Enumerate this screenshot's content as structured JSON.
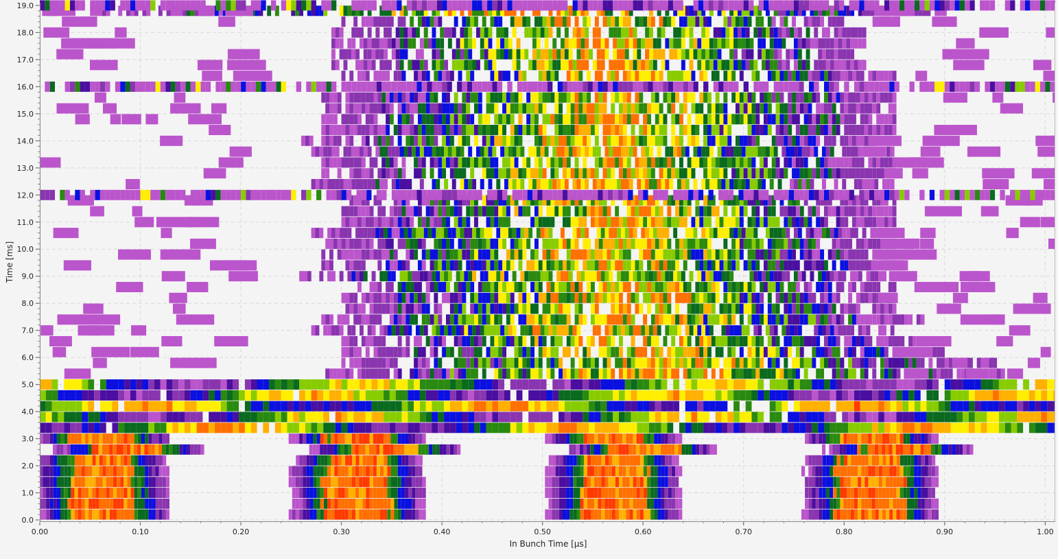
{
  "chart_data": {
    "type": "heatmap",
    "title": "",
    "xlabel": "In Bunch Time [µs]",
    "ylabel": "Time [ms]",
    "xlim": [
      0.0,
      1.01
    ],
    "ylim": [
      -0.05,
      19.1
    ],
    "x_ticks": [
      "0.00",
      "0.10",
      "0.20",
      "0.30",
      "0.40",
      "0.50",
      "0.60",
      "0.70",
      "0.80",
      "0.90",
      "1.00"
    ],
    "y_ticks": [
      "0.0",
      "1.0",
      "2.0",
      "3.0",
      "4.0",
      "5.0",
      "6.0",
      "7.0",
      "8.0",
      "9.0",
      "10.0",
      "11.0",
      "12.0",
      "13.0",
      "14.0",
      "15.0",
      "16.0",
      "17.0",
      "18.0",
      "19.0"
    ],
    "grid": true,
    "colormap": [
      "#bb55cc",
      "#8a35b0",
      "#4a0fa0",
      "#0a10e0",
      "#0a6a20",
      "#2a8a10",
      "#88cc00",
      "#ffee00",
      "#ffb000",
      "#ff7000",
      "#ff3a00"
    ],
    "background_color": "#f4f4f4",
    "row_height_ms": 0.38,
    "bunch_centers_us": [
      0.06,
      0.315,
      0.57,
      0.825
    ],
    "rows": [
      {
        "t": 0.2,
        "regime": "bunched",
        "center_shift": 0.0,
        "width": 0.09
      },
      {
        "t": 0.6,
        "regime": "bunched",
        "center_shift": 0.0,
        "width": 0.09
      },
      {
        "t": 1.0,
        "regime": "bunched",
        "center_shift": 0.0,
        "width": 0.09
      },
      {
        "t": 1.4,
        "regime": "bunched",
        "center_shift": 0.0,
        "width": 0.09
      },
      {
        "t": 1.8,
        "regime": "bunched",
        "center_shift": 0.0,
        "width": 0.09
      },
      {
        "t": 2.2,
        "regime": "bunched",
        "center_shift": 0.0,
        "width": 0.085
      },
      {
        "t": 2.6,
        "regime": "bunched",
        "center_shift": 0.08,
        "width": 0.1
      },
      {
        "t": 3.0,
        "regime": "bunched",
        "center_shift": 0.0,
        "width": 0.09
      },
      {
        "t": 3.4,
        "regime": "band",
        "base": 0.45
      },
      {
        "t": 3.8,
        "regime": "band",
        "base": 0.25
      },
      {
        "t": 4.2,
        "regime": "band",
        "base": 0.6
      },
      {
        "t": 4.6,
        "regime": "band",
        "base": 0.3
      },
      {
        "t": 5.0,
        "regime": "band",
        "base": 0.2
      },
      {
        "t": 5.4,
        "regime": "cloud",
        "span": [
          0.28,
          0.96
        ],
        "density": 0.85
      },
      {
        "t": 5.8,
        "regime": "cloud",
        "span": [
          0.3,
          0.95
        ],
        "density": 0.8
      },
      {
        "t": 6.2,
        "regime": "cloud",
        "span": [
          0.3,
          0.9
        ],
        "density": 0.8
      },
      {
        "t": 6.6,
        "regime": "cloud",
        "span": [
          0.3,
          0.88
        ],
        "density": 0.85
      },
      {
        "t": 7.0,
        "regime": "cloud",
        "span": [
          0.27,
          0.85
        ],
        "density": 0.85
      },
      {
        "t": 7.4,
        "regime": "cloud",
        "span": [
          0.28,
          0.88
        ],
        "density": 0.85
      },
      {
        "t": 7.8,
        "regime": "cloud",
        "span": [
          0.3,
          0.85
        ],
        "density": 0.85
      },
      {
        "t": 8.2,
        "regime": "cloud",
        "span": [
          0.3,
          0.85
        ],
        "density": 0.85
      },
      {
        "t": 8.6,
        "regime": "cloud",
        "span": [
          0.3,
          0.85
        ],
        "density": 0.8
      },
      {
        "t": 9.0,
        "regime": "cloud",
        "span": [
          0.25,
          0.85
        ],
        "density": 0.75
      },
      {
        "t": 9.4,
        "regime": "cloud",
        "span": [
          0.28,
          0.86
        ],
        "density": 0.8
      },
      {
        "t": 9.8,
        "regime": "cloud",
        "span": [
          0.28,
          0.85
        ],
        "density": 0.85
      },
      {
        "t": 10.2,
        "regime": "cloud",
        "span": [
          0.28,
          0.85
        ],
        "density": 0.85
      },
      {
        "t": 10.6,
        "regime": "cloud",
        "span": [
          0.27,
          0.85
        ],
        "density": 0.85
      },
      {
        "t": 11.0,
        "regime": "cloud",
        "span": [
          0.3,
          0.85
        ],
        "density": 0.85
      },
      {
        "t": 11.4,
        "regime": "cloud",
        "span": [
          0.3,
          0.85
        ],
        "density": 0.85
      },
      {
        "t": 11.8,
        "regime": "cloud",
        "span": [
          0.3,
          0.85
        ],
        "density": 0.8
      },
      {
        "t": 12.0,
        "regime": "stripe"
      },
      {
        "t": 12.4,
        "regime": "cloud",
        "span": [
          0.27,
          0.85
        ],
        "density": 0.8
      },
      {
        "t": 12.8,
        "regime": "cloud",
        "span": [
          0.28,
          0.85
        ],
        "density": 0.85
      },
      {
        "t": 13.2,
        "regime": "cloud",
        "span": [
          0.28,
          0.85
        ],
        "density": 0.85
      },
      {
        "t": 13.6,
        "regime": "cloud",
        "span": [
          0.27,
          0.85
        ],
        "density": 0.85
      },
      {
        "t": 14.0,
        "regime": "cloud",
        "span": [
          0.26,
          0.83
        ],
        "density": 0.85
      },
      {
        "t": 14.4,
        "regime": "cloud",
        "span": [
          0.28,
          0.85
        ],
        "density": 0.85
      },
      {
        "t": 14.8,
        "regime": "cloud",
        "span": [
          0.28,
          0.85
        ],
        "density": 0.85
      },
      {
        "t": 15.2,
        "regime": "cloud",
        "span": [
          0.28,
          0.85
        ],
        "density": 0.85
      },
      {
        "t": 15.6,
        "regime": "cloud",
        "span": [
          0.28,
          0.85
        ],
        "density": 0.85
      },
      {
        "t": 16.0,
        "regime": "stripe"
      },
      {
        "t": 16.4,
        "regime": "cloud",
        "span": [
          0.3,
          0.85
        ],
        "density": 0.7
      },
      {
        "t": 16.8,
        "regime": "cloud",
        "span": [
          0.29,
          0.82
        ],
        "density": 0.8
      },
      {
        "t": 17.2,
        "regime": "cloud",
        "span": [
          0.29,
          0.82
        ],
        "density": 0.8
      },
      {
        "t": 17.6,
        "regime": "cloud",
        "span": [
          0.29,
          0.82
        ],
        "density": 0.8
      },
      {
        "t": 18.0,
        "regime": "cloud",
        "span": [
          0.29,
          0.82
        ],
        "density": 0.8
      },
      {
        "t": 18.4,
        "regime": "cloud",
        "span": [
          0.3,
          0.8
        ],
        "density": 0.7
      },
      {
        "t": 18.8,
        "regime": "cloud",
        "span": [
          0.05,
          0.9
        ],
        "density": 0.8
      },
      {
        "t": 19.0,
        "regime": "stripe"
      }
    ]
  }
}
